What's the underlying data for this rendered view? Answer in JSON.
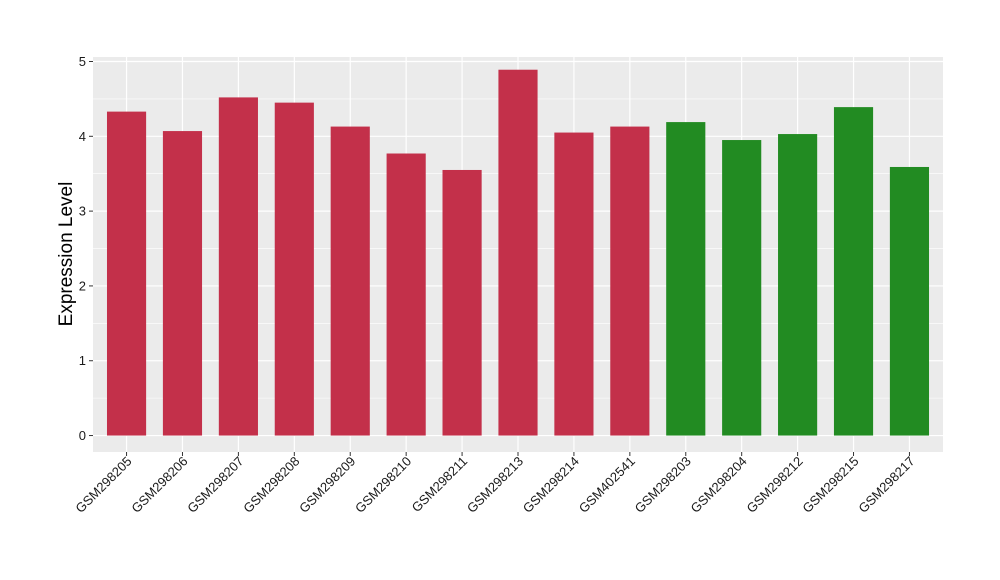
{
  "chart_data": {
    "type": "bar",
    "ylabel": "Expression Level",
    "xlabel": "",
    "ylim": [
      -0.22,
      5.06
    ],
    "y_ticks": [
      0,
      1,
      2,
      3,
      4,
      5
    ],
    "grid": true,
    "categories": [
      "GSM298205",
      "GSM298206",
      "GSM298207",
      "GSM298208",
      "GSM298209",
      "GSM298210",
      "GSM298211",
      "GSM298213",
      "GSM298214",
      "GSM402541",
      "GSM298203",
      "GSM298204",
      "GSM298212",
      "GSM298215",
      "GSM298217"
    ],
    "values": [
      4.33,
      4.07,
      4.52,
      4.45,
      4.13,
      3.77,
      3.55,
      4.89,
      4.05,
      4.13,
      4.19,
      3.95,
      4.03,
      4.39,
      3.59
    ],
    "bar_colors": [
      "#c3304a",
      "#c3304a",
      "#c3304a",
      "#c3304a",
      "#c3304a",
      "#c3304a",
      "#c3304a",
      "#c3304a",
      "#c3304a",
      "#c3304a",
      "#228b22",
      "#228b22",
      "#228b22",
      "#228b22",
      "#228b22"
    ],
    "panel_background": "#ebebeb",
    "gridline_color": "#ffffff"
  }
}
